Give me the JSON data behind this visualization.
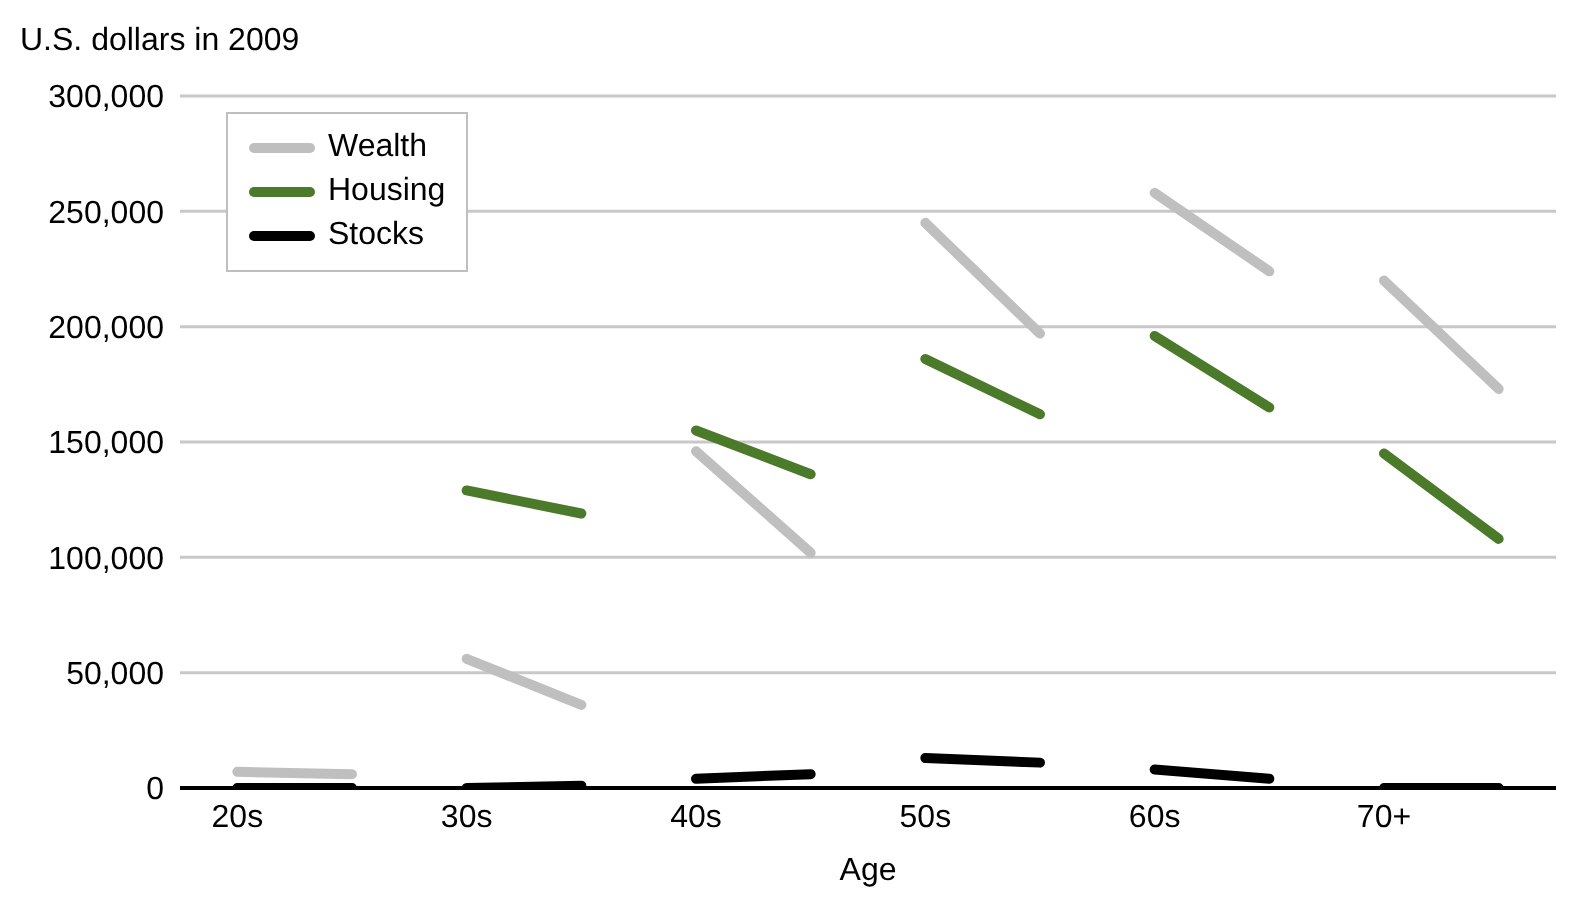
{
  "chart_data": {
    "type": "line",
    "ylabel": "U.S. dollars in 2009",
    "xlabel": "Age",
    "categories": [
      "20s",
      null,
      "30s",
      null,
      "40s",
      null,
      "50s",
      null,
      "60s",
      null,
      "70+",
      null
    ],
    "series": [
      {
        "name": "Wealth",
        "color": "#bfbfbf",
        "values": [
          7000,
          6000,
          56000,
          36000,
          146000,
          102000,
          245000,
          197000,
          258000,
          224000,
          220000,
          173000
        ]
      },
      {
        "name": "Housing",
        "color": "#4a7a2a",
        "values": [
          null,
          null,
          129000,
          119000,
          155000,
          136000,
          186000,
          162000,
          196000,
          165000,
          145000,
          108000
        ]
      },
      {
        "name": "Stocks",
        "color": "#000000",
        "values": [
          0,
          0,
          0,
          1000,
          4000,
          6000,
          13000,
          11000,
          8000,
          4000,
          0,
          0
        ]
      }
    ],
    "ylim": [
      0,
      300000
    ],
    "yticks": [
      0,
      {
        "value": 50000,
        "label": "50,000"
      },
      {
        "value": 100000,
        "label": "100,000"
      },
      {
        "value": 150000,
        "label": "150,000"
      },
      {
        "value": 200000,
        "label": "200,000"
      },
      {
        "value": 250000,
        "label": "250,000"
      },
      {
        "value": 300000,
        "label": "300,000"
      }
    ],
    "grid": "y",
    "legend": "top left",
    "marker": "none",
    "line_style": "solid"
  }
}
